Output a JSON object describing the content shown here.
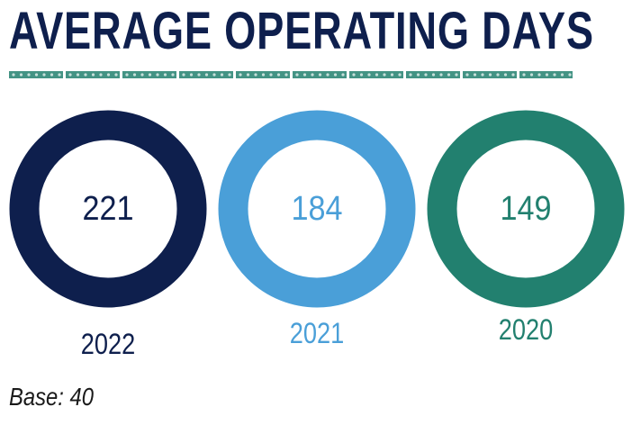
{
  "chart_data": {
    "type": "donut",
    "title": "AVERAGE OPERATING DAYS",
    "categories": [
      "2022",
      "2021",
      "2020"
    ],
    "values": [
      221,
      184,
      149
    ],
    "colors": [
      "#0e1f4d",
      "#4a9fd8",
      "#22806f"
    ],
    "footnote": "Base: 40"
  },
  "divider": {
    "color": "#22806f"
  }
}
